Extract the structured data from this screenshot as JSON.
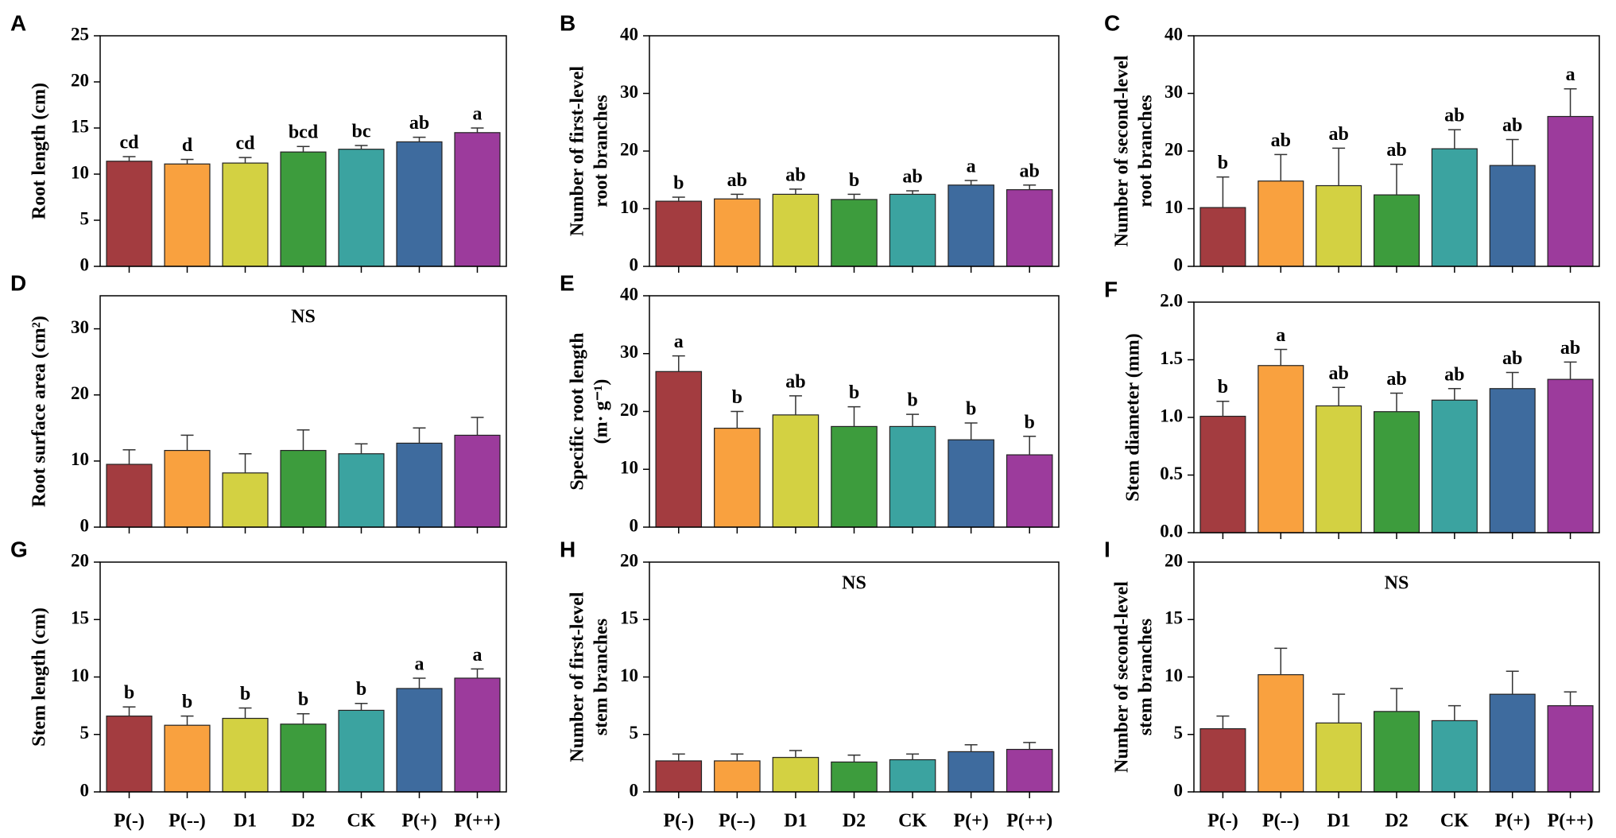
{
  "chart_data": [
    {
      "type": "bar",
      "panel": "A",
      "ylabel": [
        "Root length (cm)"
      ],
      "ylim": [
        0,
        25
      ],
      "yticks": [
        0,
        5,
        10,
        15,
        20,
        25
      ],
      "colors": [
        "#a33c40",
        "#f9a13f",
        "#d3d142",
        "#3d9c3d",
        "#3ba3a0",
        "#3e6b9e",
        "#9c3b9c"
      ],
      "values": [
        11.4,
        11.1,
        11.2,
        12.4,
        12.7,
        13.5,
        14.5
      ],
      "errors": [
        0.5,
        0.5,
        0.6,
        0.6,
        0.4,
        0.5,
        0.5
      ],
      "annotations": [
        "cd",
        "d",
        "cd",
        "bcd",
        "bc",
        "ab",
        "a"
      ]
    },
    {
      "type": "bar",
      "panel": "B",
      "ylabel": [
        "Number of first-level",
        "root branches"
      ],
      "ylim": [
        0,
        40
      ],
      "yticks": [
        0,
        10,
        20,
        30,
        40
      ],
      "colors": [
        "#a33c40",
        "#f9a13f",
        "#d3d142",
        "#3d9c3d",
        "#3ba3a0",
        "#3e6b9e",
        "#9c3b9c"
      ],
      "values": [
        11.3,
        11.7,
        12.5,
        11.6,
        12.5,
        14.1,
        13.3
      ],
      "errors": [
        0.7,
        0.8,
        0.9,
        0.9,
        0.6,
        0.8,
        0.8
      ],
      "annotations": [
        "b",
        "ab",
        "ab",
        "b",
        "ab",
        "a",
        "ab"
      ]
    },
    {
      "type": "bar",
      "panel": "C",
      "ylabel": [
        "Number of second-level",
        "root branches"
      ],
      "ylim": [
        0,
        40
      ],
      "yticks": [
        0,
        10,
        20,
        30,
        40
      ],
      "colors": [
        "#a33c40",
        "#f9a13f",
        "#d3d142",
        "#3d9c3d",
        "#3ba3a0",
        "#3e6b9e",
        "#9c3b9c"
      ],
      "values": [
        10.2,
        14.8,
        14.0,
        12.4,
        20.4,
        17.5,
        26.0
      ],
      "errors": [
        5.3,
        4.6,
        6.5,
        5.3,
        3.3,
        4.5,
        4.8
      ],
      "annotations": [
        "b",
        "ab",
        "ab",
        "ab",
        "ab",
        "ab",
        "a"
      ]
    },
    {
      "type": "bar",
      "panel": "D",
      "ylabel": [
        "Root surface area (cm²)"
      ],
      "ylim": [
        0,
        35
      ],
      "yticks": [
        0,
        10,
        20,
        30
      ],
      "colors": [
        "#a33c40",
        "#f9a13f",
        "#d3d142",
        "#3d9c3d",
        "#3ba3a0",
        "#3e6b9e",
        "#9c3b9c"
      ],
      "values": [
        9.5,
        11.6,
        8.2,
        11.6,
        11.1,
        12.7,
        13.9
      ],
      "errors": [
        2.2,
        2.3,
        2.9,
        3.1,
        1.5,
        2.3,
        2.7
      ],
      "note": "NS"
    },
    {
      "type": "bar",
      "panel": "E",
      "ylabel": [
        "Specific root length",
        "(m· g⁻¹)"
      ],
      "ylim": [
        0,
        40
      ],
      "yticks": [
        0,
        10,
        20,
        30,
        40
      ],
      "colors": [
        "#a33c40",
        "#f9a13f",
        "#d3d142",
        "#3d9c3d",
        "#3ba3a0",
        "#3e6b9e",
        "#9c3b9c"
      ],
      "values": [
        26.9,
        17.1,
        19.4,
        17.4,
        17.4,
        15.1,
        12.5
      ],
      "errors": [
        2.7,
        2.9,
        3.3,
        3.4,
        2.1,
        2.9,
        3.2
      ],
      "annotations": [
        "a",
        "b",
        "ab",
        "b",
        "b",
        "b",
        "b"
      ]
    },
    {
      "type": "bar",
      "panel": "F",
      "ylabel": [
        "Stem diameter (mm)"
      ],
      "ylim": [
        0,
        2
      ],
      "yticks": [
        {
          "value": 0,
          "label": "0.0"
        },
        0.5,
        {
          "value": 1,
          "label": "1.0"
        },
        1.5,
        {
          "value": 2,
          "label": "2.0"
        }
      ],
      "colors": [
        "#a33c40",
        "#f9a13f",
        "#d3d142",
        "#3d9c3d",
        "#3ba3a0",
        "#3e6b9e",
        "#9c3b9c"
      ],
      "values": [
        1.01,
        1.45,
        1.1,
        1.05,
        1.15,
        1.25,
        1.33
      ],
      "errors": [
        0.13,
        0.14,
        0.16,
        0.16,
        0.1,
        0.14,
        0.15
      ],
      "annotations": [
        "b",
        "a",
        "ab",
        "ab",
        "ab",
        "ab",
        "ab"
      ]
    },
    {
      "type": "bar",
      "panel": "G",
      "ylabel": [
        "Stem length  (cm)"
      ],
      "ylim": [
        0,
        20
      ],
      "yticks": [
        0,
        5,
        10,
        15,
        20
      ],
      "categories": [
        "P(-)",
        "P(--)",
        "D1",
        "D2",
        "CK",
        "P(+)",
        "P(++)"
      ],
      "colors": [
        "#a33c40",
        "#f9a13f",
        "#d3d142",
        "#3d9c3d",
        "#3ba3a0",
        "#3e6b9e",
        "#9c3b9c"
      ],
      "values": [
        6.6,
        5.8,
        6.4,
        5.9,
        7.1,
        9.0,
        9.9
      ],
      "errors": [
        0.8,
        0.8,
        0.9,
        0.9,
        0.6,
        0.9,
        0.8
      ],
      "annotations": [
        "b",
        "b",
        "b",
        "b",
        "b",
        "a",
        "a"
      ]
    },
    {
      "type": "bar",
      "panel": "H",
      "ylabel": [
        "Number of first-level",
        "stem branches"
      ],
      "ylim": [
        0,
        20
      ],
      "yticks": [
        0,
        5,
        10,
        15,
        20
      ],
      "categories": [
        "P(-)",
        "P(--)",
        "D1",
        "D2",
        "CK",
        "P(+)",
        "P(++)"
      ],
      "colors": [
        "#a33c40",
        "#f9a13f",
        "#d3d142",
        "#3d9c3d",
        "#3ba3a0",
        "#3e6b9e",
        "#9c3b9c"
      ],
      "values": [
        2.7,
        2.7,
        3.0,
        2.6,
        2.8,
        3.5,
        3.7
      ],
      "errors": [
        0.6,
        0.6,
        0.6,
        0.6,
        0.5,
        0.6,
        0.6
      ],
      "note": "NS"
    },
    {
      "type": "bar",
      "panel": "I",
      "ylabel": [
        "Number of second-level",
        "stem branches"
      ],
      "ylim": [
        0,
        20
      ],
      "yticks": [
        0,
        5,
        10,
        15,
        20
      ],
      "categories": [
        "P(-)",
        "P(--)",
        "D1",
        "D2",
        "CK",
        "P(+)",
        "P(++)"
      ],
      "colors": [
        "#a33c40",
        "#f9a13f",
        "#d3d142",
        "#3d9c3d",
        "#3ba3a0",
        "#3e6b9e",
        "#9c3b9c"
      ],
      "values": [
        5.5,
        10.2,
        6.0,
        7.0,
        6.2,
        8.5,
        7.5
      ],
      "errors": [
        1.1,
        2.3,
        2.5,
        2.0,
        1.3,
        2.0,
        1.2
      ],
      "note": "NS"
    }
  ]
}
